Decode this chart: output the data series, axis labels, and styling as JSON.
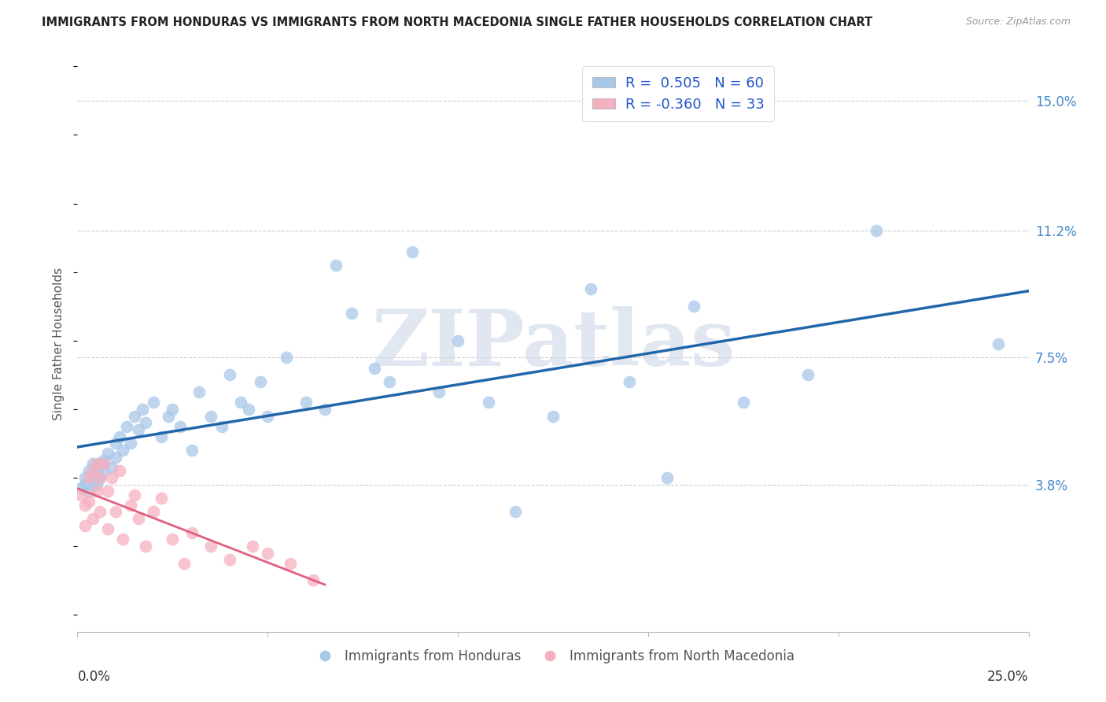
{
  "title": "IMMIGRANTS FROM HONDURAS VS IMMIGRANTS FROM NORTH MACEDONIA SINGLE FATHER HOUSEHOLDS CORRELATION CHART",
  "source": "Source: ZipAtlas.com",
  "ylabel": "Single Father Households",
  "yticks": [
    0.038,
    0.075,
    0.112,
    0.15
  ],
  "ytick_labels": [
    "3.8%",
    "7.5%",
    "11.2%",
    "15.0%"
  ],
  "xmin": 0.0,
  "xmax": 0.25,
  "ymin": -0.005,
  "ymax": 0.163,
  "blue_color": "#a8c8e8",
  "blue_line_color": "#2266aa",
  "pink_color": "#f5b0c0",
  "pink_line_color": "#e06080",
  "watermark": "ZIPatlas",
  "blue_R": 0.505,
  "blue_N": 60,
  "pink_R": -0.36,
  "pink_N": 33,
  "legend_r_color": "#2255cc",
  "legend_n_color": "#2255cc",
  "grid_color": "#cccccc",
  "blue_x": [
    0.001,
    0.002,
    0.002,
    0.003,
    0.003,
    0.004,
    0.004,
    0.005,
    0.005,
    0.006,
    0.006,
    0.007,
    0.007,
    0.008,
    0.009,
    0.01,
    0.01,
    0.011,
    0.012,
    0.013,
    0.014,
    0.015,
    0.016,
    0.017,
    0.018,
    0.02,
    0.022,
    0.024,
    0.025,
    0.027,
    0.03,
    0.032,
    0.035,
    0.038,
    0.04,
    0.043,
    0.045,
    0.048,
    0.05,
    0.055,
    0.06,
    0.065,
    0.068,
    0.072,
    0.078,
    0.082,
    0.088,
    0.095,
    0.1,
    0.108,
    0.115,
    0.125,
    0.135,
    0.145,
    0.155,
    0.162,
    0.175,
    0.192,
    0.21,
    0.242
  ],
  "blue_y": [
    0.037,
    0.04,
    0.038,
    0.042,
    0.036,
    0.039,
    0.044,
    0.038,
    0.042,
    0.04,
    0.044,
    0.042,
    0.045,
    0.047,
    0.043,
    0.05,
    0.046,
    0.052,
    0.048,
    0.055,
    0.05,
    0.058,
    0.054,
    0.06,
    0.056,
    0.062,
    0.052,
    0.058,
    0.06,
    0.055,
    0.048,
    0.065,
    0.058,
    0.055,
    0.07,
    0.062,
    0.06,
    0.068,
    0.058,
    0.075,
    0.062,
    0.06,
    0.102,
    0.088,
    0.072,
    0.068,
    0.106,
    0.065,
    0.08,
    0.062,
    0.03,
    0.058,
    0.095,
    0.068,
    0.04,
    0.09,
    0.062,
    0.07,
    0.112,
    0.079
  ],
  "pink_x": [
    0.001,
    0.002,
    0.002,
    0.003,
    0.003,
    0.004,
    0.004,
    0.005,
    0.005,
    0.006,
    0.006,
    0.007,
    0.008,
    0.008,
    0.009,
    0.01,
    0.011,
    0.012,
    0.014,
    0.015,
    0.016,
    0.018,
    0.02,
    0.022,
    0.025,
    0.028,
    0.03,
    0.035,
    0.04,
    0.046,
    0.05,
    0.056,
    0.062
  ],
  "pink_y": [
    0.035,
    0.032,
    0.026,
    0.04,
    0.033,
    0.042,
    0.028,
    0.044,
    0.036,
    0.04,
    0.03,
    0.044,
    0.036,
    0.025,
    0.04,
    0.03,
    0.042,
    0.022,
    0.032,
    0.035,
    0.028,
    0.02,
    0.03,
    0.034,
    0.022,
    0.015,
    0.024,
    0.02,
    0.016,
    0.02,
    0.018,
    0.015,
    0.01
  ]
}
